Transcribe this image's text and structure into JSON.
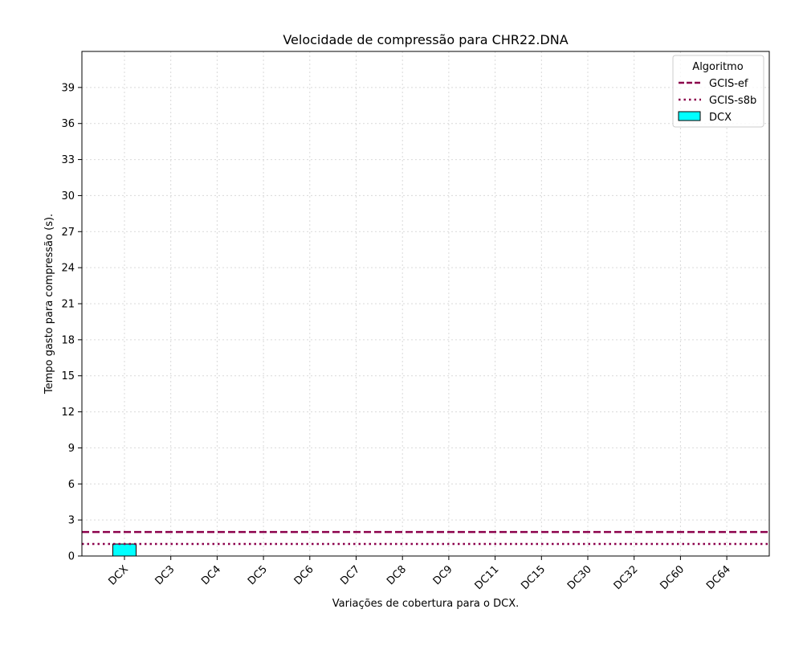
{
  "chart_data": {
    "type": "bar",
    "title": "Velocidade de compressão para  CHR22.DNA",
    "xlabel": "Variações de cobertura para o DCX.",
    "ylabel": "Tempo gasto para compressão (s).",
    "categories": [
      "DCX",
      "DC3",
      "DC4",
      "DC5",
      "DC6",
      "DC7",
      "DC8",
      "DC9",
      "DC11",
      "DC15",
      "DC30",
      "DC32",
      "DC60",
      "DC64"
    ],
    "series": [
      {
        "name": "DCX",
        "values": [
          1.0,
          0,
          0,
          0,
          0,
          0,
          0,
          0,
          0,
          0,
          0,
          0,
          0,
          0
        ],
        "color": "#00ffff"
      }
    ],
    "reference_lines": [
      {
        "name": "GCIS-ef",
        "value": 2.0,
        "style": "dashed",
        "color": "#8b004b"
      },
      {
        "name": "GCIS-s8b",
        "value": 1.0,
        "style": "dotted",
        "color": "#8b004b"
      }
    ],
    "y_ticks": [
      0,
      3,
      6,
      9,
      12,
      15,
      18,
      21,
      24,
      27,
      30,
      33,
      36,
      39
    ],
    "ylim": [
      0,
      42
    ],
    "grid": true,
    "legend": {
      "title": "Algoritmo",
      "placement": "top-right"
    }
  }
}
